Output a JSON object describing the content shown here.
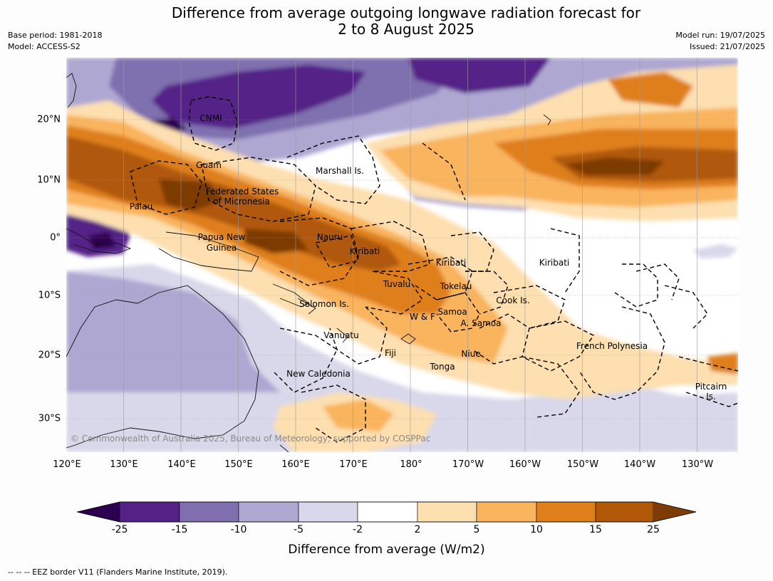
{
  "title_line1": "Difference from average outgoing longwave radiation forecast for",
  "title_line2": "2 to 8 August 2025",
  "meta_left": [
    "Base period: 1981-2018",
    "Model: ACCESS-S2"
  ],
  "meta_right": [
    "Model run: 19/07/2025",
    "Issued: 21/07/2025"
  ],
  "lon_labels": [
    "120°E",
    "130°E",
    "140°E",
    "150°E",
    "160°E",
    "170°E",
    "180°",
    "170°W",
    "160°W",
    "150°W",
    "140°W",
    "130°W"
  ],
  "lat_labels": [
    "20°N",
    "10°N",
    "0°",
    "10°S",
    "20°S",
    "30°S"
  ],
  "places": {
    "cnmi": "CNMI",
    "guam": "Guam",
    "marshall": "Marshall Is.",
    "fsm1": "Federated States",
    "fsm2": "of Micronesia",
    "palau": "Palau",
    "png1": "Papua New",
    "png2": "Guinea",
    "nauru": "Nauru",
    "kiribati1": "Kiribati",
    "kiribati2": "Kiribati",
    "kiribati3": "Kiribati",
    "tuvalu": "Tuvalu",
    "tokelau": "Tokelau",
    "solomon": "Solomon Is.",
    "wf": "W & F",
    "samoa": "Samoa",
    "asamoa": "A. Samoa",
    "cook": "Cook Is.",
    "vanuatu": "Vanuatu",
    "fiji": "Fiji",
    "niue": "Niue",
    "tonga": "Tonga",
    "newcal": "New Caledonia",
    "frpoly": "French Polynesia",
    "pitcairn1": "Pitcairn",
    "pitcairn2": "Is."
  },
  "copyright": "© Commonwealth of Australia 2025, Bureau of Meteorology, supported by COSPPac",
  "colorbar": {
    "ticks": [
      "-25",
      "-15",
      "-10",
      "-5",
      "-2",
      "2",
      "5",
      "10",
      "15",
      "25"
    ],
    "colors": [
      "#2d0050",
      "#542287",
      "#7f6faf",
      "#aea7d2",
      "#d8d8ea",
      "#ffffff",
      "#fddfb0",
      "#f9b45d",
      "#df7f1a",
      "#b05807",
      "#7d3b05"
    ],
    "label": "Difference from average (W/m2)"
  },
  "footnote": "--  --  -- EEZ border V11 (Flanders Marine Institute, 2019)."
}
